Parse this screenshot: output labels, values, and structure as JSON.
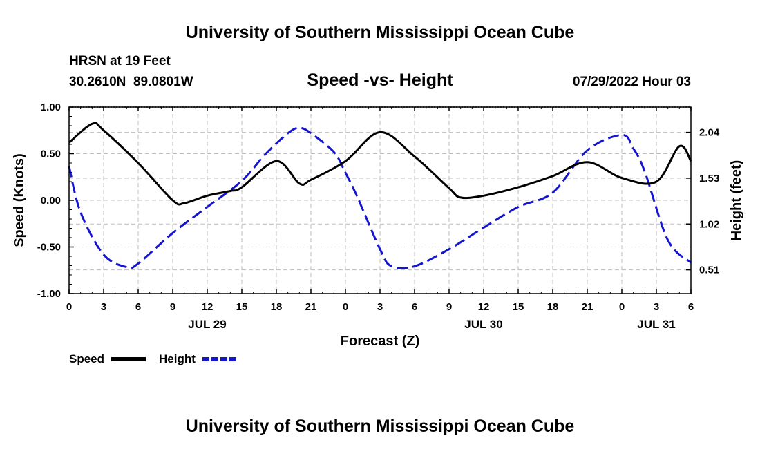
{
  "page": {
    "top_title": "University of Southern Mississippi Ocean Cube",
    "bottom_title": "University of Southern Mississippi Ocean Cube",
    "station": "HRSN at 19 Feet",
    "coords": "30.2610N  89.0801W",
    "datetime": "07/29/2022 Hour 03"
  },
  "chart_data": {
    "type": "line",
    "title": "Speed -vs- Height",
    "xlabel": "Forecast (Z)",
    "ylabel_left": "Speed (Knots)",
    "ylabel_right": "Height (feet)",
    "x_range_hours": [
      0,
      54
    ],
    "x_ticks": [
      0,
      3,
      6,
      9,
      12,
      15,
      18,
      21,
      24,
      27,
      30,
      33,
      36,
      39,
      42,
      45,
      48,
      51,
      54
    ],
    "x_tick_labels": [
      "0",
      "3",
      "6",
      "9",
      "12",
      "15",
      "18",
      "21",
      "0",
      "3",
      "6",
      "9",
      "12",
      "15",
      "18",
      "21",
      "0",
      "3",
      "6"
    ],
    "day_labels": [
      {
        "hour": 12,
        "label": "JUL 29"
      },
      {
        "hour": 36,
        "label": "JUL 30"
      },
      {
        "hour": 51,
        "label": "JUL 31"
      }
    ],
    "ylim_left": [
      -1.0,
      1.0
    ],
    "yticks_left": [
      "1.00",
      "0.50",
      "0.00",
      "-0.50",
      "-1.00"
    ],
    "yticks_left_values": [
      1.0,
      0.5,
      0.0,
      -0.5,
      -1.0
    ],
    "ylim_right": [
      0.2455,
      2.3215
    ],
    "yticks_right": [
      "2.04",
      "1.53",
      "1.02",
      "0.51"
    ],
    "yticks_right_values": [
      2.04,
      1.53,
      1.02,
      0.51
    ],
    "grid": true,
    "series": [
      {
        "name": "Speed",
        "axis": "left",
        "color": "#000000",
        "style": "solid",
        "x": [
          0,
          2,
          3,
          6,
          9,
          10,
          12,
          14,
          15,
          18,
          20,
          21,
          24,
          27,
          30,
          33,
          34,
          36,
          39,
          42,
          45,
          48,
          51,
          53,
          54
        ],
        "y": [
          0.62,
          0.82,
          0.75,
          0.4,
          0.0,
          -0.03,
          0.05,
          0.1,
          0.14,
          0.42,
          0.18,
          0.22,
          0.42,
          0.73,
          0.47,
          0.13,
          0.03,
          0.05,
          0.14,
          0.26,
          0.41,
          0.24,
          0.2,
          0.58,
          0.42
        ]
      },
      {
        "name": "Height",
        "axis": "right",
        "color": "#1515d0",
        "style": "dashed",
        "x": [
          0,
          1,
          3,
          5,
          6,
          9,
          12,
          15,
          17,
          19,
          20,
          21,
          23,
          24,
          25,
          27,
          28,
          30,
          33,
          36,
          39,
          42,
          45,
          48,
          49,
          50,
          52,
          54
        ],
        "y": [
          1.66,
          1.15,
          0.68,
          0.54,
          0.58,
          0.92,
          1.21,
          1.5,
          1.79,
          2.03,
          2.09,
          2.03,
          1.82,
          1.59,
          1.33,
          0.74,
          0.55,
          0.55,
          0.74,
          0.98,
          1.21,
          1.37,
          1.84,
          2.01,
          1.86,
          1.6,
          0.84,
          0.59
        ]
      }
    ],
    "legend": [
      {
        "label": "Speed",
        "color": "#000000",
        "style": "solid"
      },
      {
        "label": "Height",
        "color": "#1515d0",
        "style": "dashed"
      }
    ]
  }
}
